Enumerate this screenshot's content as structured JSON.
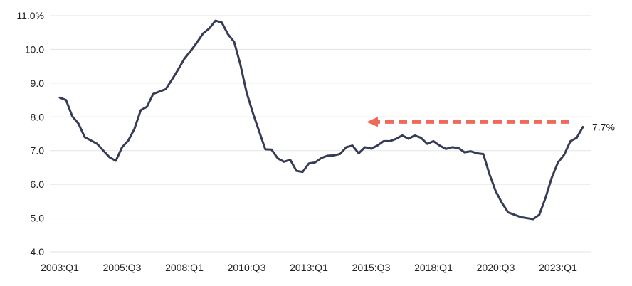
{
  "chart_data": {
    "type": "line",
    "title": "",
    "xlabel": "",
    "ylabel": "",
    "ylim": [
      4.0,
      11.0
    ],
    "y_ticks": [
      {
        "value": 4.0,
        "label": "4.0"
      },
      {
        "value": 5.0,
        "label": "5.0"
      },
      {
        "value": 6.0,
        "label": "6.0"
      },
      {
        "value": 7.0,
        "label": "7.0"
      },
      {
        "value": 8.0,
        "label": "8.0"
      },
      {
        "value": 9.0,
        "label": "9.0"
      },
      {
        "value": 10.0,
        "label": "10.0"
      },
      {
        "value": 11.0,
        "label": "11.0%"
      }
    ],
    "x_ticks": [
      "2003:Q1",
      "2005:Q3",
      "2008:Q1",
      "2010:Q3",
      "2013:Q1",
      "2015:Q3",
      "2018:Q1",
      "2020:Q3",
      "2023:Q1"
    ],
    "grid": true,
    "line_color": "#363b56",
    "series": [
      {
        "values": [
          8.57,
          8.5,
          8.02,
          7.8,
          7.4,
          7.3,
          7.2,
          7.0,
          6.8,
          6.7,
          7.1,
          7.3,
          7.65,
          8.2,
          8.3,
          8.68,
          8.75,
          8.82,
          9.1,
          9.4,
          9.72,
          9.95,
          10.2,
          10.47,
          10.62,
          10.85,
          10.8,
          10.45,
          10.22,
          9.55,
          8.72,
          8.12,
          7.58,
          7.04,
          7.03,
          6.77,
          6.67,
          6.73,
          6.4,
          6.37,
          6.62,
          6.65,
          6.78,
          6.85,
          6.86,
          6.9,
          7.1,
          7.15,
          6.92,
          7.1,
          7.06,
          7.15,
          7.28,
          7.28,
          7.35,
          7.45,
          7.35,
          7.45,
          7.38,
          7.2,
          7.28,
          7.15,
          7.05,
          7.1,
          7.08,
          6.95,
          6.98,
          6.92,
          6.9,
          6.3,
          5.8,
          5.45,
          5.17,
          5.1,
          5.03,
          5.0,
          4.97,
          5.1,
          5.6,
          6.2,
          6.65,
          6.88,
          7.28,
          7.38,
          7.7
        ]
      }
    ],
    "annotation": {
      "label": "7.7%",
      "value": 7.7,
      "arrow_level": 7.85,
      "arrow_color": "#ee6a5b"
    }
  }
}
